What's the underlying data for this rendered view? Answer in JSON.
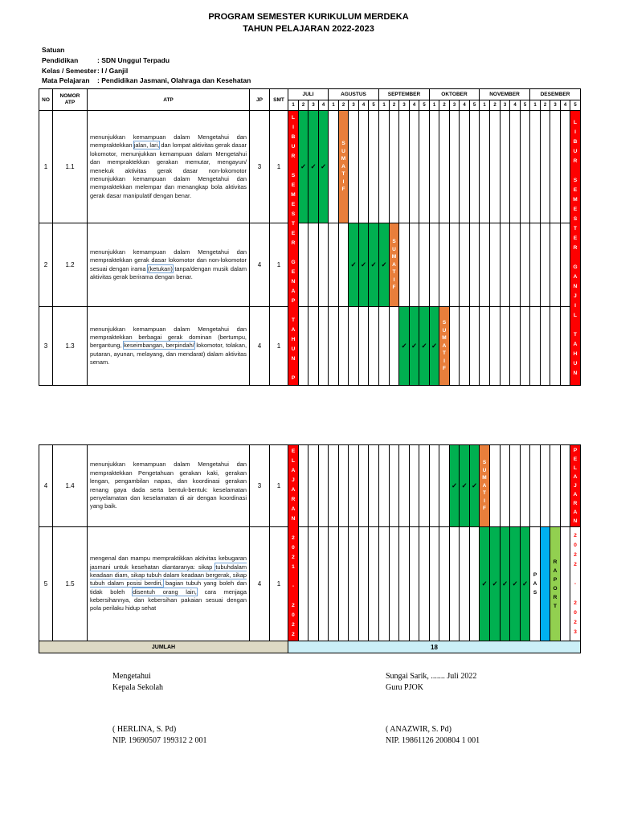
{
  "header": {
    "title_line1": "PROGRAM SEMESTER KURIKULUM MERDEKA",
    "title_line2": "TAHUN PELAJARAN 2022-2023",
    "info": [
      {
        "label": "Satuan  Pendidikan",
        "value": ": SDN Unggul Terpadu"
      },
      {
        "label": "Kelas / Semester",
        "value": ": I / Ganjil"
      },
      {
        "label": "Mata Pelajaran",
        "value": ": Pendidikan Jasmani, Olahraga dan Kesehatan"
      }
    ]
  },
  "calendar": {
    "col_headers": {
      "no": "NO",
      "nomor": "NOMOR ATP",
      "atp": "ATP",
      "jp": "JP",
      "smt": "SMT"
    },
    "months": [
      {
        "label": "JULI",
        "weeks": [
          1,
          2,
          3,
          4
        ]
      },
      {
        "label": "AGUSTUS",
        "weeks": [
          1,
          2,
          3,
          4,
          5
        ]
      },
      {
        "label": "SEPTEMBER",
        "weeks": [
          1,
          2,
          3,
          4,
          5
        ]
      },
      {
        "label": "OKTOBER",
        "weeks": [
          1,
          2,
          3,
          4,
          5
        ]
      },
      {
        "label": "NOVEMBER",
        "weeks": [
          1,
          2,
          3,
          4,
          5
        ]
      },
      {
        "label": "DESEMBER",
        "weeks": [
          1,
          2,
          3,
          4,
          5
        ]
      }
    ],
    "rows": [
      {
        "no": "1",
        "atp_no": "1.1",
        "jp": "3",
        "smt": "1",
        "block": "top",
        "checks": [
          1,
          2,
          3
        ],
        "sumatif": 5,
        "segments": [
          {
            "t": "menunjukkan kemampuan dalam Mengetahui dan mempraktekkan  "
          },
          {
            "t": "jalan, lari,",
            "h": true
          },
          {
            "t": " dan lompat aktivitas gerak dasar lokomotor,  menunjukkan kemampuan dalam Mengetahui dan mempraktekkan gerakan memutar, mengayun/ menekuk aktivitas gerak dasar non-lokomotor menunjukkan kemampuan dalam Mengetahui dan mempraktekkan  melempar dan menangkap bola aktivitas gerak dasar manipulatif dengan benar."
          }
        ]
      },
      {
        "no": "2",
        "atp_no": "1.2",
        "jp": "4",
        "smt": "1",
        "block": "top",
        "checks": [
          6,
          7,
          8,
          9
        ],
        "sumatif": 10,
        "segments": [
          {
            "t": "menunjukkan kemampuan dalam Mengetahui dan mempraktekkan  gerak dasar lokomotor dan non-lokomotor sesuai dengan irama "
          },
          {
            "t": "(ketukan)",
            "h": true
          },
          {
            "t": " tanpa/dengan musik dalam aktivitas gerak berirama dengan benar."
          }
        ]
      },
      {
        "no": "3",
        "atp_no": "1.3",
        "jp": "4",
        "smt": "1",
        "block": "top",
        "checks": [
          11,
          12,
          13,
          14
        ],
        "sumatif": 15,
        "segments": [
          {
            "t": "menunjukkan kemampuan dalam Mengetahui dan mempraktekkan  berbagai gerak dominan (bertumpu, bergantung, "
          },
          {
            "t": "keseimbangan, berpindah/",
            "h": true
          },
          {
            "t": " lokomotor, tolakan, putaran, ayunan, melayang, dan mendarat) dalam aktivitas senam."
          }
        ]
      },
      {
        "no": "4",
        "atp_no": "1.4",
        "jp": "3",
        "smt": "1",
        "block": "bottom",
        "checks": [
          16,
          17,
          18
        ],
        "sumatif": 19,
        "segments": [
          {
            "t": "menunjukkan kemampuan dalam Mengetahui dan mempraktekkan Pengetahuan gerakan kaki, gerakan lengan, pengambilan napas, dan koordinasi gerakan renang gaya dada serta bentuk-bentuk: keselamatan penyelamatan dan keselamatan di air dengan koordinasi yang baik."
          }
        ]
      },
      {
        "no": "5",
        "atp_no": "1.5",
        "jp": "4",
        "smt": "1",
        "block": "bottom",
        "checks": [
          19,
          20,
          21,
          22,
          23
        ],
        "pas_col": 24,
        "blue_col": 25,
        "raport_col": 26,
        "segments": [
          {
            "t": "mengenal dan mampu mempraktikkan aktivitas kebugaran jasmani untuk kesehatan diantaranya: sikap "
          },
          {
            "t": "tubuhdalam keadaan diam, sikap tubuh dalam keadaan bergerak, sikap tubuh dalam posisi berdiri,",
            "h": true
          },
          {
            "t": " bagian tubuh yang boleh dan tidak boleh "
          },
          {
            "t": "disentuh orang lain,",
            "h": true
          },
          {
            "t": " cara menjaga kebersihannya, dan kebersihan pakaian sesuai dengan pola perilaku hidup sehat"
          }
        ]
      }
    ],
    "left_bar_top": "LIBUR SEMESTER GENAP TAHUN P",
    "left_bar_bottom": "ELAJARAN 2021 - 2022",
    "right_bar_top": "LIBUR SEMESTER GANJIL TAHUN",
    "right_bar_row4": "PELAJARAN",
    "right_bar_row5": "2022 - 2023",
    "sumatif_label": "SUMATIF",
    "pas_label": "PAS",
    "raport_label": "RAPORT",
    "jumlah_label": "JUMLAH",
    "total_jp": "18",
    "check_symbol": "✓",
    "colors": {
      "red": "#FE0000",
      "green": "#00B050",
      "orange": "#E87E3B",
      "blue": "#00B0F0",
      "raport_green": "#92D050",
      "beige": "#DDD9C4",
      "cyan": "#CBEFF7",
      "highlight": "#76A5D8"
    }
  },
  "footer": {
    "left": {
      "line1": "Mengetahui",
      "line2": "Kepala Sekolah",
      "name": "( HERLINA, S. Pd)",
      "nip": "NIP. 19690507 199312 2 001"
    },
    "right": {
      "line1": "Sungai Sarik, ....... Juli  2022",
      "line2": "Guru PJOK",
      "name": "( ANAZWIR, S. Pd)",
      "nip": "NIP. 19861126 200804 1 001"
    }
  }
}
